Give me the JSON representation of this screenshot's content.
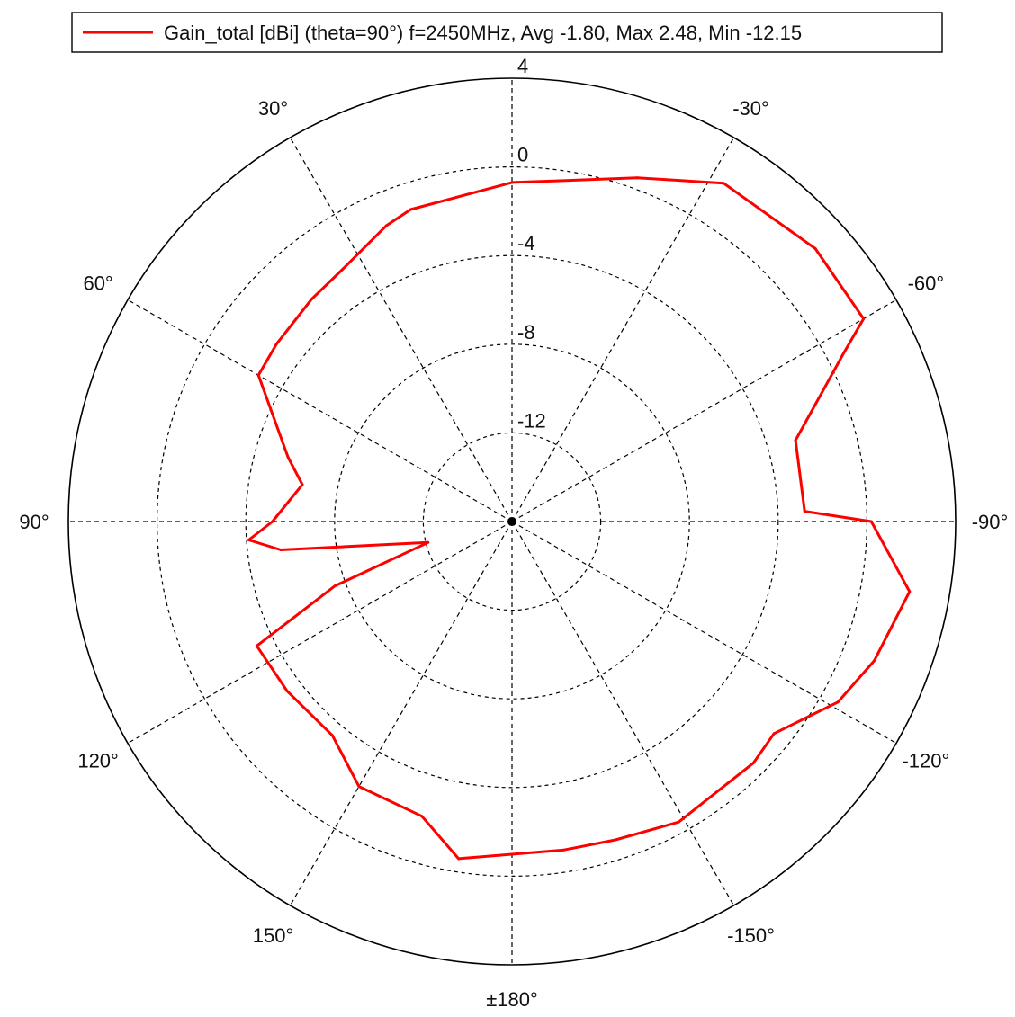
{
  "chart_data": {
    "type": "polar-line",
    "legend": {
      "label": "Gain_total [dBi] (theta=90°) f=2450MHz, Avg -1.80, Max 2.48, Min -12.15",
      "position": "top"
    },
    "radial_axis": {
      "min": -16,
      "max": 4,
      "ticks": [
        4,
        0,
        -4,
        -8,
        -12
      ],
      "tick_labels": [
        "4",
        "0",
        "-4",
        "-8",
        "-12"
      ],
      "grid": true
    },
    "angular_axis": {
      "zero_direction": "top",
      "direction": "counterclockwise",
      "ticks": [
        0,
        30,
        60,
        90,
        120,
        150,
        180,
        -150,
        -120,
        -90,
        -60,
        -30
      ],
      "labels": [
        {
          "angle": -30,
          "text": "-30°"
        },
        {
          "angle": -60,
          "text": "-60°"
        },
        {
          "angle": -90,
          "text": "-90°"
        },
        {
          "angle": -120,
          "text": "-120°"
        },
        {
          "angle": -150,
          "text": "-150°"
        },
        {
          "angle": 180,
          "text": "±180°"
        },
        {
          "angle": 150,
          "text": "150°"
        },
        {
          "angle": 120,
          "text": "120°"
        },
        {
          "angle": 90,
          "text": "90°"
        },
        {
          "angle": 60,
          "text": "60°"
        },
        {
          "angle": 30,
          "text": "30°"
        }
      ]
    },
    "series": [
      {
        "name": "Gain_total [dBi] (theta=90°) f=2450MHz, Avg -1.80, Max 2.48, Min -12.15",
        "color": "#ff0000",
        "angles": [
          0,
          -20,
          -32,
          -48,
          -60,
          -63,
          -74,
          -88,
          -90,
          -100,
          -111,
          -119,
          -129,
          -135,
          -151,
          -162,
          -171,
          171,
          163,
          150,
          140,
          127,
          116,
          110,
          104,
          97,
          94,
          90,
          80,
          74,
          60,
          53,
          42,
          34,
          23,
          18
        ],
        "values": [
          -0.7,
          0.5,
          2.0,
          2.4,
          2.3,
          0.8,
          -2.7,
          -2.8,
          0.2,
          2.2,
          1.5,
          0.8,
          -0.8,
          -0.6,
          -0.5,
          -0.9,
          -1.0,
          -0.6,
          -2.1,
          -2.2,
          -3.4,
          -3.3,
          -3.2,
          -7.5,
          -12.1,
          -5.5,
          -4.1,
          -5.2,
          -6.4,
          -5.5,
          -2.8,
          -2.7,
          -2.5,
          -2.3,
          -1.5,
          -1.2
        ]
      }
    ]
  }
}
